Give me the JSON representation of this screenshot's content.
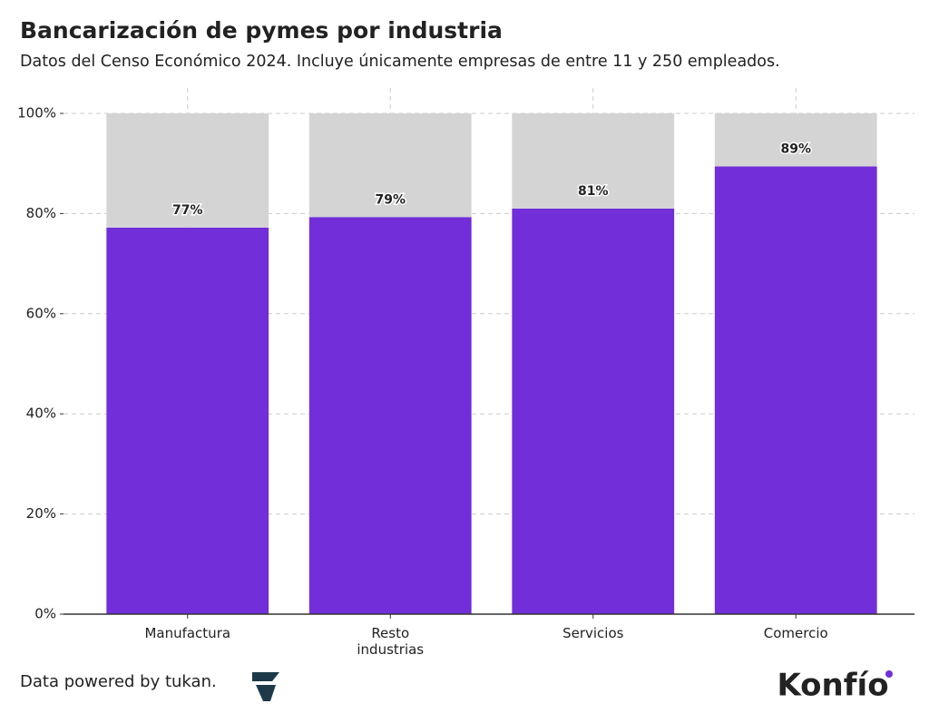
{
  "chart_data": {
    "type": "stacked_bar",
    "title": "Bancarización de pymes por industria",
    "subtitle": "Datos del Censo Económico 2024. Incluye únicamente empresas de entre 11 y 250 empleados.",
    "categories": [
      "Manufactura",
      "Resto industrias",
      "Servicios",
      "Comercio"
    ],
    "series": [
      {
        "color": "#722ed9",
        "values": [
          77.2,
          79.3,
          81.0,
          89.4
        ],
        "value_labels": [
          "77%",
          "79%",
          "81%",
          "89%"
        ]
      },
      {
        "color": "#d4d4d4",
        "values": [
          22.8,
          20.7,
          19.0,
          10.6
        ]
      }
    ],
    "ylim": [
      0,
      100
    ],
    "yticks": [
      {
        "value": 0,
        "label": "0%"
      },
      {
        "value": 20,
        "label": "20%"
      },
      {
        "value": 40,
        "label": "40%"
      },
      {
        "value": 60,
        "label": "60%"
      },
      {
        "value": 80,
        "label": "80%"
      },
      {
        "value": 100,
        "label": "100%"
      }
    ],
    "grid": true
  },
  "footer": {
    "source": "Data powered by tukan.",
    "brand": "Konfío"
  }
}
